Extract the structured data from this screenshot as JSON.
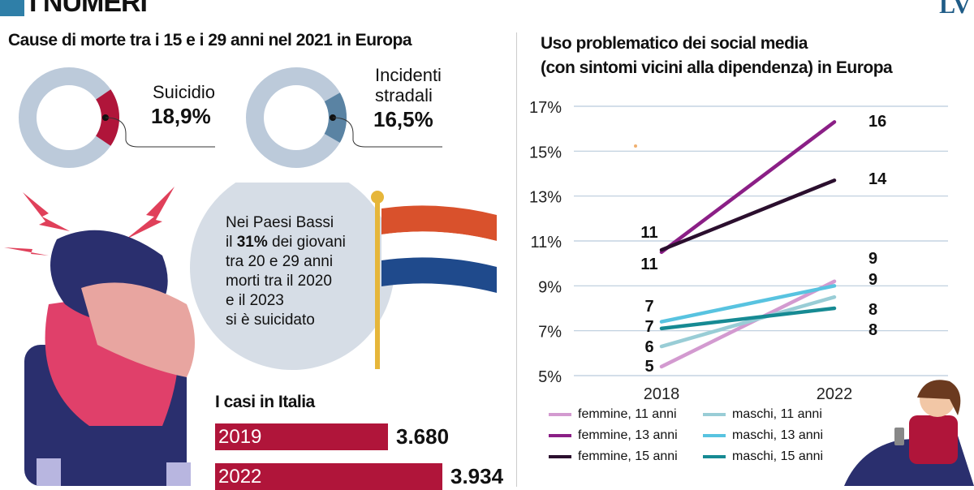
{
  "header": {
    "title": "I NUMERI",
    "logo": "LV"
  },
  "deaths": {
    "title": "Cause di morte tra i 15 e i 29 anni nel 2021 in Europa",
    "items": [
      {
        "label": "Suicidio",
        "value": "18,9%",
        "percent": 18.9,
        "color": "#b0153a"
      },
      {
        "label_line1": "Incidenti",
        "label_line2": "stradali",
        "value": "16,5%",
        "percent": 16.5,
        "color": "#5a83a3"
      }
    ],
    "ring_color": "#bccada"
  },
  "netherlands": {
    "lines": [
      "Nei Paesi Bassi",
      "il ",
      "31%",
      " dei giovani",
      "tra 20 e 29 anni",
      "morti tra il 2020",
      "e il 2023",
      "si è suicidato"
    ]
  },
  "italy": {
    "title": "I casi in Italia",
    "bars": [
      {
        "year": "2019",
        "label": "3.680",
        "value": 3680
      },
      {
        "year": "2022",
        "label": "3.934",
        "value": 3934
      }
    ]
  },
  "chart_data": {
    "type": "line",
    "title": "Uso problematico dei social media (con sintomi vicini alla dipendenza) in Europa",
    "title_line1": "Uso problematico dei social media",
    "title_line2": "(con sintomi vicini alla dipendenza) in Europa",
    "x": [
      "2018",
      "2022"
    ],
    "ylim": [
      5,
      17
    ],
    "yticks": [
      "17%",
      "15%",
      "13%",
      "11%",
      "9%",
      "7%",
      "5%"
    ],
    "yticks_values": [
      17,
      15,
      13,
      11,
      9,
      7,
      5
    ],
    "grid": true,
    "legend_placement": "bottom",
    "series": [
      {
        "name": "femmine, 11 anni",
        "values": [
          5.4,
          9.2
        ],
        "labels": [
          "5",
          "9"
        ],
        "color": "#d39ad0"
      },
      {
        "name": "femmine, 13 anni",
        "values": [
          10.5,
          16.3
        ],
        "labels": [
          "11",
          "16"
        ],
        "color": "#8b1f86"
      },
      {
        "name": "femmine, 15 anni",
        "values": [
          10.6,
          13.7
        ],
        "labels": [
          "11",
          "14"
        ],
        "color": "#2b0f2e"
      },
      {
        "name": "maschi, 11 anni",
        "values": [
          6.3,
          8.5
        ],
        "labels": [
          "6",
          "8"
        ],
        "color": "#99cdd6"
      },
      {
        "name": "maschi, 13 anni",
        "values": [
          7.4,
          9.0
        ],
        "labels": [
          "7",
          "9"
        ],
        "color": "#58c3e0"
      },
      {
        "name": "maschi, 15 anni",
        "values": [
          7.1,
          8.0
        ],
        "labels": [
          "7",
          "8"
        ],
        "color": "#168a93"
      }
    ]
  }
}
